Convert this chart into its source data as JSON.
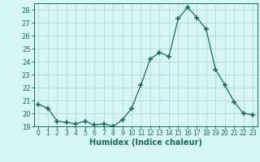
{
  "x": [
    0,
    1,
    2,
    3,
    4,
    5,
    6,
    7,
    8,
    9,
    10,
    11,
    12,
    13,
    14,
    15,
    16,
    17,
    18,
    19,
    20,
    21,
    22,
    23
  ],
  "y": [
    20.7,
    20.4,
    19.4,
    19.3,
    19.2,
    19.4,
    19.1,
    19.2,
    19.0,
    19.5,
    20.4,
    22.2,
    24.2,
    24.7,
    24.4,
    27.3,
    28.2,
    27.4,
    26.5,
    23.4,
    22.2,
    20.9,
    20.0,
    19.9
  ],
  "line_color": "#1a6b5a",
  "marker": "+",
  "marker_size": 4,
  "bg_color": "#d6f5f5",
  "grid_color": "#b8d8d8",
  "xlabel": "Humidex (Indice chaleur)",
  "ylim": [
    19,
    28.5
  ],
  "xlim": [
    -0.5,
    23.5
  ],
  "yticks": [
    19,
    20,
    21,
    22,
    23,
    24,
    25,
    26,
    27,
    28
  ],
  "xticks": [
    0,
    1,
    2,
    3,
    4,
    5,
    6,
    7,
    8,
    9,
    10,
    11,
    12,
    13,
    14,
    15,
    16,
    17,
    18,
    19,
    20,
    21,
    22,
    23
  ],
  "tick_color": "#1a6b5a",
  "label_color": "#1a6b5a",
  "spine_color": "#1a6b5a"
}
